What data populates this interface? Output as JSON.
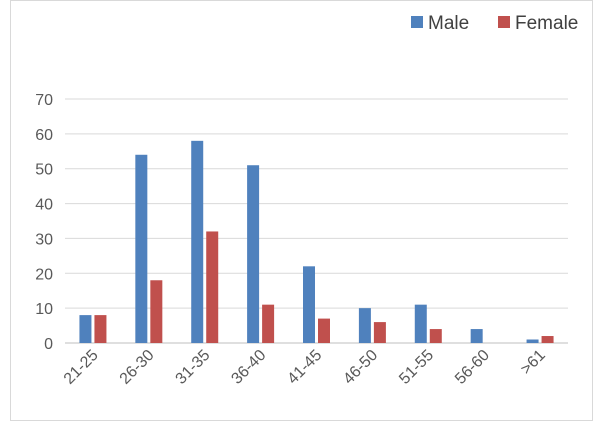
{
  "chart_data": {
    "type": "bar",
    "categories": [
      "21-25",
      "26-30",
      "31-35",
      "36-40",
      "41-45",
      "46-50",
      "51-55",
      "56-60",
      ">61"
    ],
    "series": [
      {
        "name": "Male",
        "color": "#4f81bd",
        "values": [
          8,
          54,
          58,
          51,
          22,
          10,
          11,
          4,
          1
        ]
      },
      {
        "name": "Female",
        "color": "#c0504d",
        "values": [
          8,
          18,
          32,
          11,
          7,
          6,
          4,
          0,
          2
        ]
      }
    ],
    "title": "",
    "xlabel": "",
    "ylabel": "",
    "ylim": [
      0,
      70
    ],
    "yticks": [
      0,
      10,
      20,
      30,
      40,
      50,
      60,
      70
    ],
    "grid": true,
    "legend_position": "top-right"
  }
}
